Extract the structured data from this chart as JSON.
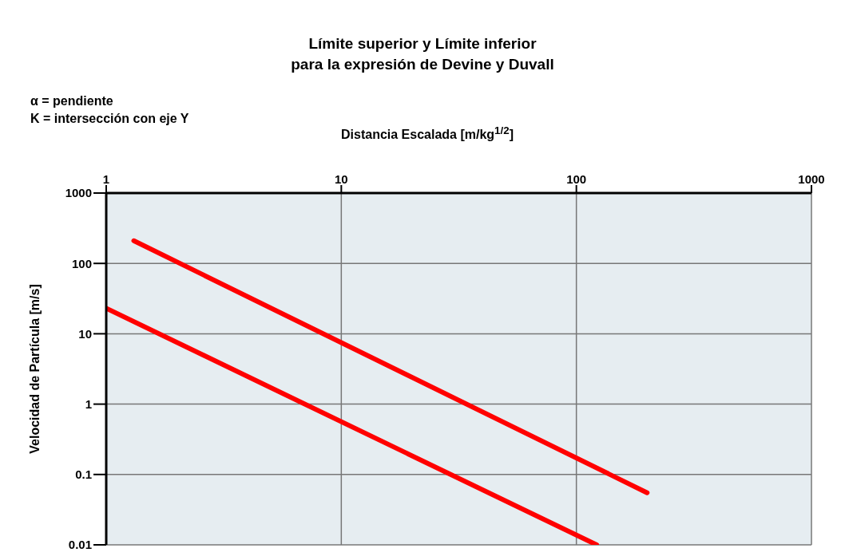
{
  "chart_data": {
    "type": "line",
    "title": "Límite superior y Límite inferior\npara la expresión de Devine y Duvall",
    "xlabel": "Distancia Escalada [m/kg$^{1/2}$]",
    "ylabel": "Velocidad de Partícula [m/s]",
    "annotations": [
      "α = pendiente",
      "K = intersección con eje Y"
    ],
    "series": [
      {
        "color": "#ff0000",
        "x": [
          1.31,
          200
        ],
        "values": [
          210,
          0.055
        ]
      },
      {
        "color": "#ff0000",
        "x": [
          1,
          122
        ],
        "values": [
          23,
          0.01
        ]
      }
    ],
    "log": "xy",
    "xlim": [
      1,
      1000
    ],
    "xticks": [
      1,
      10,
      100,
      1000
    ],
    "ylim": [
      0.01,
      1000
    ],
    "yticks": [
      0.01,
      0.1,
      1,
      10,
      100,
      1000
    ],
    "grid": true
  }
}
